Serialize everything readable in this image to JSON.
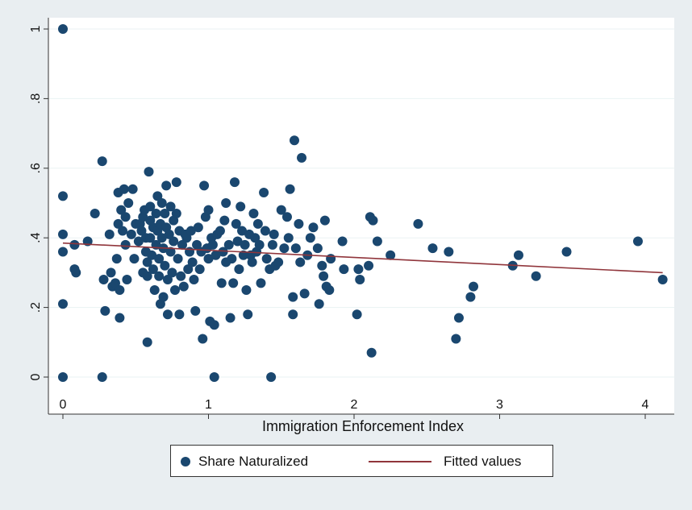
{
  "chart_data": {
    "type": "scatter",
    "title": "",
    "xlabel": "Immigration Enforcement Index",
    "ylabel": "",
    "xlim": [
      0,
      4.2
    ],
    "ylim": [
      0,
      1
    ],
    "xticks": [
      0,
      1,
      2,
      3,
      4
    ],
    "xtick_labels": [
      "0",
      "1",
      "2",
      "3",
      "4"
    ],
    "yticks": [
      0,
      0.2,
      0.4,
      0.6,
      0.8,
      1
    ],
    "ytick_labels": [
      "0",
      ".2",
      ".4",
      ".6",
      ".8",
      "1"
    ],
    "grid": true,
    "legend_position": "bottom",
    "colors": {
      "points": "#1a476f",
      "fit": "#90353b",
      "plot_bg": "#ffffff",
      "outer_bg": "#e9eef1",
      "grid": "#eaf2f3"
    },
    "series": [
      {
        "name": "Share Naturalized",
        "kind": "scatter",
        "points": [
          [
            0.0,
            1.0
          ],
          [
            0.0,
            0.52
          ],
          [
            0.0,
            0.41
          ],
          [
            0.0,
            0.36
          ],
          [
            0.0,
            0.21
          ],
          [
            0.0,
            0.0
          ],
          [
            0.08,
            0.38
          ],
          [
            0.08,
            0.31
          ],
          [
            0.09,
            0.3
          ],
          [
            0.17,
            0.39
          ],
          [
            0.22,
            0.47
          ],
          [
            0.27,
            0.62
          ],
          [
            0.27,
            0.0
          ],
          [
            0.28,
            0.28
          ],
          [
            0.29,
            0.19
          ],
          [
            0.32,
            0.41
          ],
          [
            0.33,
            0.3
          ],
          [
            0.34,
            0.26
          ],
          [
            0.36,
            0.27
          ],
          [
            0.37,
            0.34
          ],
          [
            0.38,
            0.53
          ],
          [
            0.38,
            0.44
          ],
          [
            0.39,
            0.25
          ],
          [
            0.39,
            0.17
          ],
          [
            0.4,
            0.48
          ],
          [
            0.41,
            0.42
          ],
          [
            0.42,
            0.54
          ],
          [
            0.43,
            0.46
          ],
          [
            0.43,
            0.38
          ],
          [
            0.44,
            0.28
          ],
          [
            0.45,
            0.5
          ],
          [
            0.47,
            0.41
          ],
          [
            0.48,
            0.54
          ],
          [
            0.49,
            0.34
          ],
          [
            0.5,
            0.44
          ],
          [
            0.52,
            0.39
          ],
          [
            0.53,
            0.44
          ],
          [
            0.54,
            0.42
          ],
          [
            0.55,
            0.46
          ],
          [
            0.55,
            0.3
          ],
          [
            0.56,
            0.48
          ],
          [
            0.57,
            0.4
          ],
          [
            0.57,
            0.36
          ],
          [
            0.58,
            0.33
          ],
          [
            0.58,
            0.29
          ],
          [
            0.58,
            0.1
          ],
          [
            0.59,
            0.59
          ],
          [
            0.6,
            0.49
          ],
          [
            0.6,
            0.45
          ],
          [
            0.6,
            0.4
          ],
          [
            0.61,
            0.35
          ],
          [
            0.62,
            0.43
          ],
          [
            0.62,
            0.31
          ],
          [
            0.63,
            0.25
          ],
          [
            0.64,
            0.47
          ],
          [
            0.64,
            0.38
          ],
          [
            0.65,
            0.52
          ],
          [
            0.65,
            0.42
          ],
          [
            0.66,
            0.34
          ],
          [
            0.66,
            0.29
          ],
          [
            0.67,
            0.44
          ],
          [
            0.67,
            0.21
          ],
          [
            0.68,
            0.5
          ],
          [
            0.68,
            0.4
          ],
          [
            0.69,
            0.37
          ],
          [
            0.69,
            0.23
          ],
          [
            0.7,
            0.47
          ],
          [
            0.7,
            0.32
          ],
          [
            0.71,
            0.55
          ],
          [
            0.71,
            0.43
          ],
          [
            0.72,
            0.18
          ],
          [
            0.72,
            0.28
          ],
          [
            0.73,
            0.41
          ],
          [
            0.74,
            0.49
          ],
          [
            0.74,
            0.36
          ],
          [
            0.75,
            0.3
          ],
          [
            0.76,
            0.45
          ],
          [
            0.76,
            0.39
          ],
          [
            0.77,
            0.25
          ],
          [
            0.78,
            0.56
          ],
          [
            0.78,
            0.47
          ],
          [
            0.79,
            0.34
          ],
          [
            0.8,
            0.42
          ],
          [
            0.8,
            0.18
          ],
          [
            0.81,
            0.29
          ],
          [
            0.82,
            0.38
          ],
          [
            0.83,
            0.26
          ],
          [
            0.84,
            0.41
          ],
          [
            0.85,
            0.4
          ],
          [
            0.86,
            0.31
          ],
          [
            0.87,
            0.36
          ],
          [
            0.88,
            0.42
          ],
          [
            0.89,
            0.33
          ],
          [
            0.9,
            0.28
          ],
          [
            0.91,
            0.19
          ],
          [
            0.92,
            0.38
          ],
          [
            0.93,
            0.43
          ],
          [
            0.94,
            0.31
          ],
          [
            0.95,
            0.36
          ],
          [
            0.96,
            0.11
          ],
          [
            0.97,
            0.55
          ],
          [
            0.98,
            0.46
          ],
          [
            0.99,
            0.37
          ],
          [
            1.0,
            0.48
          ],
          [
            1.0,
            0.34
          ],
          [
            1.01,
            0.16
          ],
          [
            1.02,
            0.4
          ],
          [
            1.03,
            0.38
          ],
          [
            1.04,
            0.15
          ],
          [
            1.04,
            0.0
          ],
          [
            1.05,
            0.35
          ],
          [
            1.06,
            0.41
          ],
          [
            1.08,
            0.42
          ],
          [
            1.09,
            0.27
          ],
          [
            1.1,
            0.36
          ],
          [
            1.11,
            0.45
          ],
          [
            1.12,
            0.5
          ],
          [
            1.12,
            0.33
          ],
          [
            1.14,
            0.38
          ],
          [
            1.15,
            0.17
          ],
          [
            1.16,
            0.34
          ],
          [
            1.17,
            0.27
          ],
          [
            1.18,
            0.56
          ],
          [
            1.19,
            0.44
          ],
          [
            1.2,
            0.39
          ],
          [
            1.21,
            0.31
          ],
          [
            1.22,
            0.49
          ],
          [
            1.23,
            0.42
          ],
          [
            1.24,
            0.35
          ],
          [
            1.25,
            0.38
          ],
          [
            1.26,
            0.25
          ],
          [
            1.27,
            0.18
          ],
          [
            1.28,
            0.41
          ],
          [
            1.29,
            0.35
          ],
          [
            1.3,
            0.33
          ],
          [
            1.31,
            0.47
          ],
          [
            1.32,
            0.4
          ],
          [
            1.33,
            0.36
          ],
          [
            1.34,
            0.44
          ],
          [
            1.35,
            0.38
          ],
          [
            1.36,
            0.27
          ],
          [
            1.38,
            0.53
          ],
          [
            1.39,
            0.42
          ],
          [
            1.4,
            0.34
          ],
          [
            1.42,
            0.31
          ],
          [
            1.43,
            0.0
          ],
          [
            1.44,
            0.38
          ],
          [
            1.45,
            0.41
          ],
          [
            1.46,
            0.32
          ],
          [
            1.48,
            0.33
          ],
          [
            1.5,
            0.48
          ],
          [
            1.52,
            0.37
          ],
          [
            1.54,
            0.46
          ],
          [
            1.55,
            0.4
          ],
          [
            1.56,
            0.54
          ],
          [
            1.58,
            0.23
          ],
          [
            1.58,
            0.18
          ],
          [
            1.59,
            0.68
          ],
          [
            1.6,
            0.37
          ],
          [
            1.62,
            0.44
          ],
          [
            1.63,
            0.33
          ],
          [
            1.64,
            0.63
          ],
          [
            1.66,
            0.24
          ],
          [
            1.68,
            0.35
          ],
          [
            1.7,
            0.4
          ],
          [
            1.72,
            0.43
          ],
          [
            1.75,
            0.37
          ],
          [
            1.76,
            0.21
          ],
          [
            1.78,
            0.32
          ],
          [
            1.79,
            0.29
          ],
          [
            1.8,
            0.45
          ],
          [
            1.81,
            0.26
          ],
          [
            1.83,
            0.25
          ],
          [
            1.84,
            0.34
          ],
          [
            1.92,
            0.39
          ],
          [
            1.93,
            0.31
          ],
          [
            2.02,
            0.18
          ],
          [
            2.03,
            0.31
          ],
          [
            2.04,
            0.28
          ],
          [
            2.1,
            0.32
          ],
          [
            2.11,
            0.46
          ],
          [
            2.12,
            0.07
          ],
          [
            2.13,
            0.45
          ],
          [
            2.16,
            0.39
          ],
          [
            2.25,
            0.35
          ],
          [
            2.44,
            0.44
          ],
          [
            2.54,
            0.37
          ],
          [
            2.65,
            0.36
          ],
          [
            2.7,
            0.11
          ],
          [
            2.72,
            0.17
          ],
          [
            2.8,
            0.23
          ],
          [
            2.82,
            0.26
          ],
          [
            3.09,
            0.32
          ],
          [
            3.13,
            0.35
          ],
          [
            3.25,
            0.29
          ],
          [
            3.46,
            0.36
          ],
          [
            3.95,
            0.39
          ],
          [
            4.12,
            0.28
          ]
        ]
      },
      {
        "name": "Fitted values",
        "kind": "line",
        "points": [
          [
            0.0,
            0.385
          ],
          [
            4.12,
            0.3
          ]
        ]
      }
    ]
  },
  "legend": {
    "items": [
      {
        "label": "Share Naturalized",
        "icon": "filled-circle"
      },
      {
        "label": "Fitted values",
        "icon": "line"
      }
    ]
  }
}
